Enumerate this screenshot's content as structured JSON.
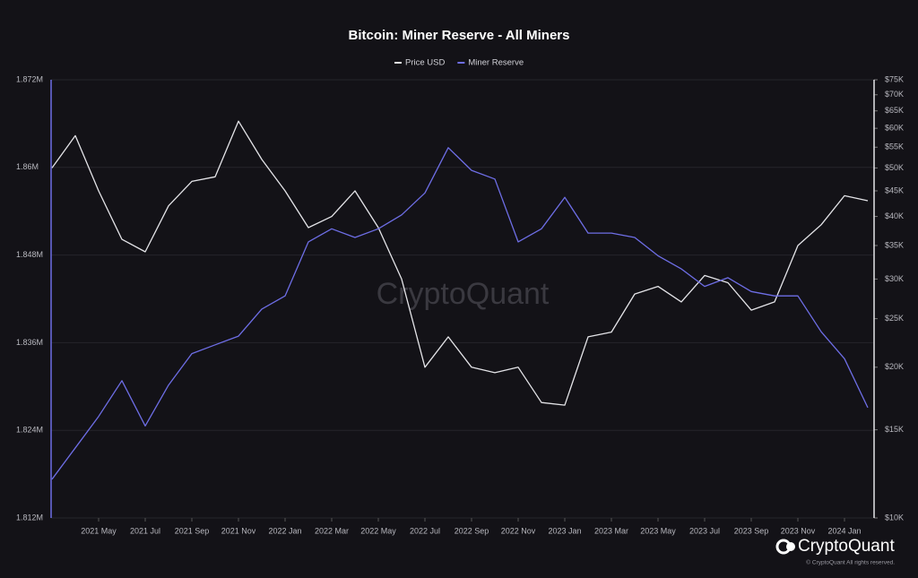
{
  "chart_data": {
    "type": "line",
    "title": "Bitcoin: Miner Reserve - All Miners",
    "x": [
      "2021-03",
      "2021-04",
      "2021-05",
      "2021-06",
      "2021-07",
      "2021-08",
      "2021-09",
      "2021-10",
      "2021-11",
      "2021-12",
      "2022-01",
      "2022-02",
      "2022-03",
      "2022-04",
      "2022-05",
      "2022-06",
      "2022-07",
      "2022-08",
      "2022-09",
      "2022-10",
      "2022-11",
      "2022-12",
      "2023-01",
      "2023-02",
      "2023-03",
      "2023-04",
      "2023-05",
      "2023-06",
      "2023-07",
      "2023-08",
      "2023-09",
      "2023-10",
      "2023-11",
      "2023-12",
      "2024-01",
      "2024-02"
    ],
    "xlim": [
      "2021-03",
      "2024-02"
    ],
    "xticks": [
      {
        "value": "2021-05",
        "label": "2021 May"
      },
      {
        "value": "2021-07",
        "label": "2021 Jul"
      },
      {
        "value": "2021-09",
        "label": "2021 Sep"
      },
      {
        "value": "2021-11",
        "label": "2021 Nov"
      },
      {
        "value": "2022-01",
        "label": "2022 Jan"
      },
      {
        "value": "2022-03",
        "label": "2022 Mar"
      },
      {
        "value": "2022-05",
        "label": "2022 May"
      },
      {
        "value": "2022-07",
        "label": "2022 Jul"
      },
      {
        "value": "2022-09",
        "label": "2022 Sep"
      },
      {
        "value": "2022-11",
        "label": "2022 Nov"
      },
      {
        "value": "2023-01",
        "label": "2023 Jan"
      },
      {
        "value": "2023-03",
        "label": "2023 Mar"
      },
      {
        "value": "2023-05",
        "label": "2023 May"
      },
      {
        "value": "2023-07",
        "label": "2023 Jul"
      },
      {
        "value": "2023-09",
        "label": "2023 Sep"
      },
      {
        "value": "2023-11",
        "label": "2023 Nov"
      },
      {
        "value": "2024-01",
        "label": "2024 Jan"
      }
    ],
    "series": [
      {
        "name": "Price USD",
        "color": "#e4e4e8",
        "axis": "y2",
        "values": [
          50000,
          58000,
          45000,
          36000,
          34000,
          42000,
          47000,
          48000,
          62000,
          52000,
          45000,
          38000,
          40000,
          45000,
          38000,
          30000,
          20000,
          23000,
          20000,
          19500,
          20000,
          17000,
          16800,
          23000,
          23500,
          28000,
          29000,
          27000,
          30500,
          29500,
          26000,
          27000,
          35000,
          38500,
          44000,
          43000
        ]
      },
      {
        "name": "Miner Reserve",
        "color": "#6e6ee6",
        "values": [
          1817300,
          1821600,
          1825900,
          1830800,
          1824600,
          1830200,
          1834500,
          1835700,
          1836900,
          1840600,
          1842400,
          1849800,
          1851600,
          1850400,
          1851600,
          1853500,
          1856500,
          1862700,
          1859600,
          1858400,
          1849800,
          1851600,
          1855900,
          1851000,
          1851000,
          1850400,
          1847900,
          1846100,
          1843700,
          1844900,
          1843000,
          1842400,
          1842400,
          1837500,
          1833800,
          1827100
        ]
      }
    ],
    "ylim": [
      1812000,
      1872000
    ],
    "yticks": [
      {
        "value": 1812000,
        "label": "1.812M"
      },
      {
        "value": 1824000,
        "label": "1.824M"
      },
      {
        "value": 1836000,
        "label": "1.836M"
      },
      {
        "value": 1848000,
        "label": "1.848M"
      },
      {
        "value": 1860000,
        "label": "1.86M"
      },
      {
        "value": 1872000,
        "label": "1.872M"
      }
    ],
    "y2lim": [
      10000,
      75000
    ],
    "y2log": true,
    "y2ticks": [
      {
        "value": 10000,
        "label": "$10K"
      },
      {
        "value": 15000,
        "label": "$15K"
      },
      {
        "value": 20000,
        "label": "$20K"
      },
      {
        "value": 25000,
        "label": "$25K"
      },
      {
        "value": 30000,
        "label": "$30K"
      },
      {
        "value": 35000,
        "label": "$35K"
      },
      {
        "value": 40000,
        "label": "$40K"
      },
      {
        "value": 45000,
        "label": "$45K"
      },
      {
        "value": 50000,
        "label": "$50K"
      },
      {
        "value": 55000,
        "label": "$55K"
      },
      {
        "value": 60000,
        "label": "$60K"
      },
      {
        "value": 65000,
        "label": "$65K"
      },
      {
        "value": 70000,
        "label": "$70K"
      },
      {
        "value": 75000,
        "label": "$75K"
      }
    ],
    "grid": true,
    "watermark": "CryptoQuant",
    "brand": "CryptoQuant",
    "copyright": "© CryptoQuant All rights reserved."
  }
}
